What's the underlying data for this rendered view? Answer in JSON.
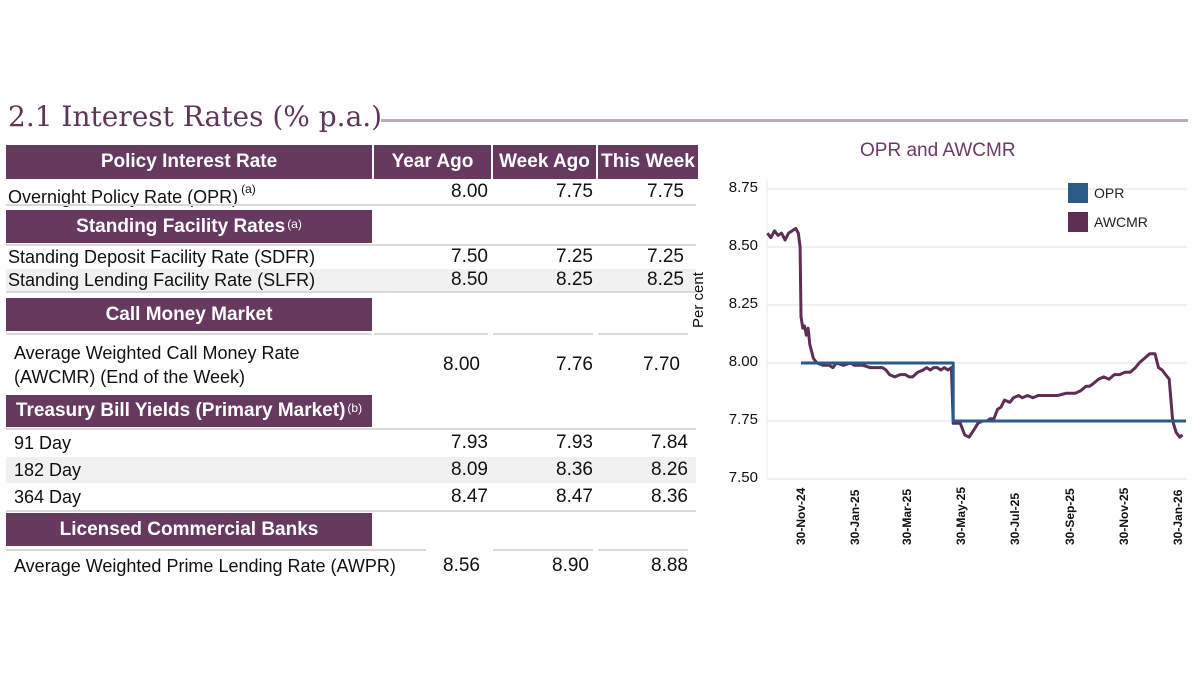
{
  "page": {
    "title": "2.1 Interest Rates (% p.a.)"
  },
  "table": {
    "columns": [
      "Policy Interest Rate",
      "Year Ago",
      "Week Ago",
      "This Week"
    ],
    "sections": [
      {
        "header": "Policy Interest Rate",
        "rows": [
          {
            "label": "Overnight Policy Rate (OPR)",
            "note": "(a)",
            "year_ago": "8.00",
            "week_ago": "7.75",
            "this_week": "7.75"
          }
        ]
      },
      {
        "header": "Standing Facility Rates",
        "note": "(a)",
        "rows": [
          {
            "label": "Standing Deposit Facility Rate (SDFR)",
            "year_ago": "7.50",
            "week_ago": "7.25",
            "this_week": "7.25"
          },
          {
            "label": "Standing Lending Facility Rate (SLFR)",
            "year_ago": "8.50",
            "week_ago": "8.25",
            "this_week": "8.25"
          }
        ]
      },
      {
        "header": "Call Money Market",
        "rows": [
          {
            "label_line1": "Average Weighted Call Money Rate",
            "label_line2": "(AWCMR) (End of the Week)",
            "year_ago": "8.00",
            "week_ago": "7.76",
            "this_week": "7.70"
          }
        ]
      },
      {
        "header": "Treasury Bill Yields (Primary Market)",
        "note": "(b)",
        "rows": [
          {
            "label": "91 Day",
            "year_ago": "7.93",
            "week_ago": "7.93",
            "this_week": "7.84"
          },
          {
            "label": "182 Day",
            "year_ago": "8.09",
            "week_ago": "8.36",
            "this_week": "8.26"
          },
          {
            "label": "364 Day",
            "year_ago": "8.47",
            "week_ago": "8.47",
            "this_week": "8.36"
          }
        ]
      },
      {
        "header": "Licensed Commercial Banks",
        "rows": [
          {
            "label": "Average Weighted Prime Lending Rate (AWPR)",
            "year_ago": "8.56",
            "week_ago": "8.90",
            "this_week": "8.88"
          }
        ]
      }
    ]
  },
  "colors": {
    "header_bg": "#653a5e",
    "title": "#5e3658",
    "opr": "#2b5a87",
    "awcmr": "#5e2f55"
  },
  "chart_data": {
    "type": "line",
    "title": "OPR and AWCMR",
    "xlabel": "",
    "ylabel": "Per cent",
    "ylim": [
      7.5,
      8.75
    ],
    "yticks": [
      "8.75",
      "8.50",
      "8.25",
      "8.00",
      "7.75",
      "7.50"
    ],
    "ytick_values": [
      8.75,
      8.5,
      8.25,
      8.0,
      7.75,
      7.5
    ],
    "xticks": [
      "30-Nov-24",
      "30-Jan-25",
      "30-Mar-25",
      "30-May-25",
      "30-Jul-25",
      "30-Sep-25",
      "30-Nov-25",
      "30-Jan-26"
    ],
    "x_unit": "days since 30-Nov-24",
    "xtick_values": [
      0,
      61,
      120,
      181,
      242,
      304,
      365,
      426
    ],
    "xlim": [
      -38,
      435
    ],
    "grid": true,
    "legend": "top-right",
    "series": [
      {
        "name": "OPR",
        "x": [
          0,
          172,
          172,
          435
        ],
        "values": [
          8.0,
          8.0,
          7.75,
          7.75
        ]
      },
      {
        "name": "AWCMR",
        "x": [
          -38,
          -34,
          -30,
          -26,
          -22,
          -18,
          -14,
          -10,
          -6,
          -3,
          -1,
          0,
          2,
          4,
          6,
          8,
          10,
          12,
          14,
          18,
          25,
          32,
          36,
          40,
          48,
          56,
          60,
          70,
          78,
          85,
          92,
          96,
          100,
          106,
          112,
          118,
          122,
          126,
          132,
          138,
          142,
          146,
          150,
          154,
          158,
          162,
          166,
          170,
          172,
          175,
          180,
          185,
          190,
          195,
          200,
          205,
          210,
          214,
          218,
          222,
          226,
          230,
          236,
          240,
          246,
          250,
          256,
          262,
          268,
          274,
          280,
          290,
          300,
          310,
          316,
          322,
          326,
          330,
          336,
          342,
          348,
          354,
          360,
          366,
          372,
          378,
          382,
          388,
          394,
          400,
          404,
          408,
          412,
          416,
          420,
          424,
          428,
          431
        ],
        "values": [
          8.56,
          8.54,
          8.57,
          8.55,
          8.56,
          8.53,
          8.56,
          8.57,
          8.58,
          8.56,
          8.5,
          8.2,
          8.15,
          8.16,
          8.12,
          8.15,
          8.08,
          8.05,
          8.02,
          8.0,
          7.99,
          7.99,
          7.98,
          8.0,
          7.99,
          8.0,
          7.99,
          7.99,
          7.98,
          7.98,
          7.98,
          7.97,
          7.95,
          7.94,
          7.95,
          7.95,
          7.94,
          7.94,
          7.96,
          7.97,
          7.98,
          7.97,
          7.98,
          7.98,
          7.97,
          7.98,
          7.97,
          7.98,
          7.74,
          7.74,
          7.74,
          7.69,
          7.68,
          7.71,
          7.74,
          7.75,
          7.75,
          7.76,
          7.76,
          7.8,
          7.81,
          7.84,
          7.83,
          7.85,
          7.86,
          7.85,
          7.86,
          7.85,
          7.86,
          7.86,
          7.86,
          7.86,
          7.87,
          7.87,
          7.88,
          7.9,
          7.9,
          7.91,
          7.93,
          7.94,
          7.93,
          7.95,
          7.95,
          7.96,
          7.96,
          7.98,
          8.0,
          8.02,
          8.04,
          8.04,
          7.98,
          7.97,
          7.95,
          7.93,
          7.75,
          7.7,
          7.68,
          7.69
        ]
      }
    ]
  }
}
